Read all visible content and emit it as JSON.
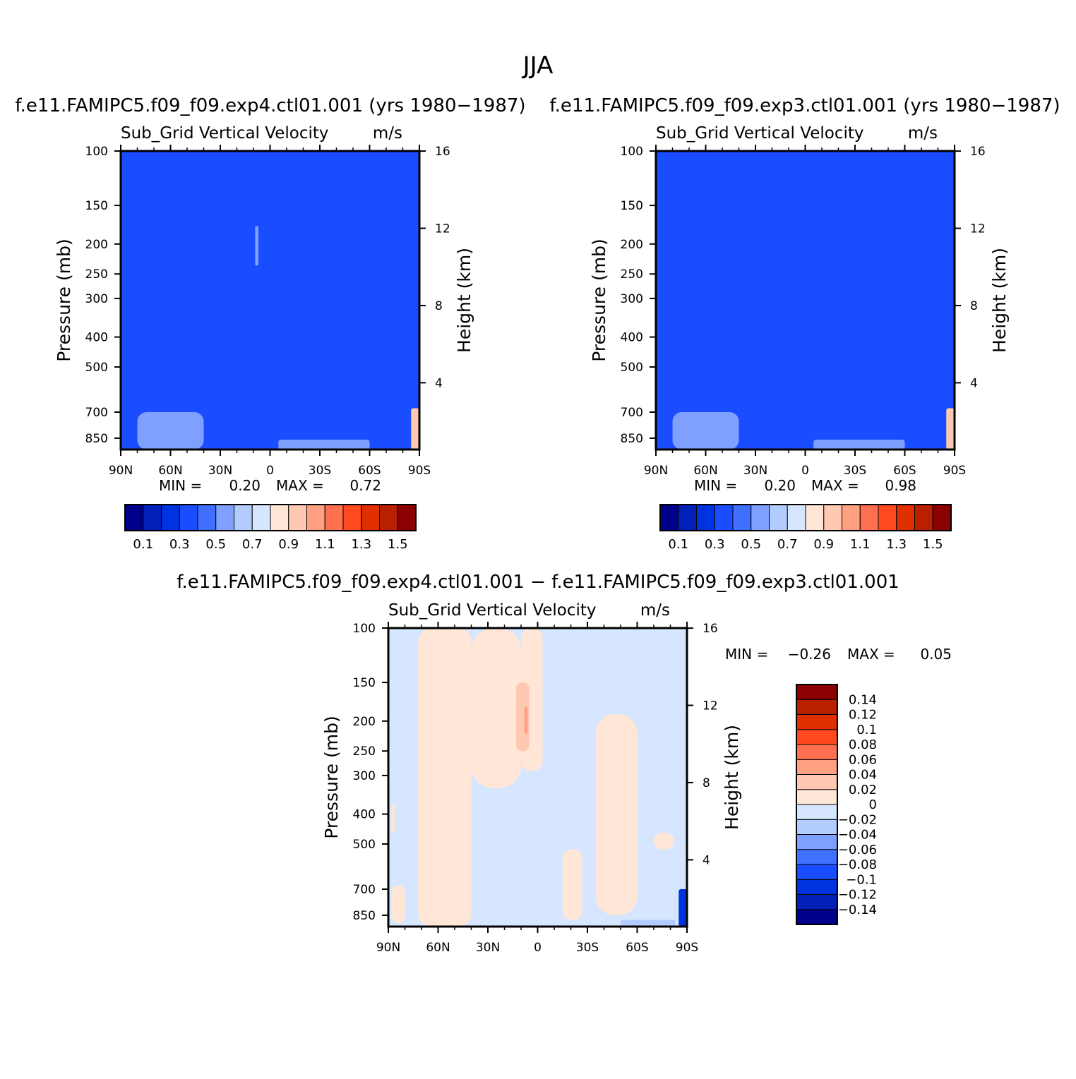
{
  "figure": {
    "title": "JJA"
  },
  "chart_data": [
    {
      "type": "heatmap",
      "title": "f.e11.FAMIPC5.f09_f09.exp4.ctl01.001 (yrs 1980−1987)",
      "subtitle_left": "Sub_Grid Vertical Velocity",
      "subtitle_right": "m/s",
      "ylabel": "Pressure (mb)",
      "ylabel_right": "Height (km)",
      "x_ticks": [
        "90N",
        "60N",
        "30N",
        "0",
        "30S",
        "60S",
        "90S"
      ],
      "y_ticks": [
        100,
        150,
        200,
        250,
        300,
        400,
        500,
        700,
        850
      ],
      "y_ticks_right": [
        16,
        12,
        8,
        4
      ],
      "ylim": [
        100,
        925
      ],
      "y_scale": "log",
      "min_label": "MIN =",
      "min_value": "0.20",
      "max_label": "MAX =",
      "max_value": "0.72",
      "field_level": 0.3,
      "features": [
        {
          "level": 0.5,
          "lat": [
            80,
            40
          ],
          "p": [
            700,
            925
          ]
        },
        {
          "level": 0.5,
          "lat": [
            -5,
            -60
          ],
          "p": [
            860,
            925
          ]
        },
        {
          "level": 0.5,
          "lat": [
            9,
            7
          ],
          "p": [
            175,
            235
          ]
        },
        {
          "level": 0.9,
          "lat": [
            -85,
            -90
          ],
          "p": [
            680,
            925
          ]
        }
      ],
      "colorbar": {
        "orientation": "horizontal",
        "colors": [
          "#00008b",
          "#0020b8",
          "#0033e0",
          "#1a4dff",
          "#4070ff",
          "#80a0ff",
          "#b3ccff",
          "#d6e6ff",
          "#ffe6d6",
          "#ffc8b0",
          "#ffa080",
          "#ff7050",
          "#ff4a20",
          "#e03000",
          "#b82000",
          "#8b0000"
        ],
        "labels": [
          "0.1",
          "0.3",
          "0.5",
          "0.7",
          "0.9",
          "1.1",
          "1.3",
          "1.5"
        ]
      }
    },
    {
      "type": "heatmap",
      "title": "f.e11.FAMIPC5.f09_f09.exp3.ctl01.001 (yrs 1980−1987)",
      "subtitle_left": "Sub_Grid Vertical Velocity",
      "subtitle_right": "m/s",
      "ylabel": "Pressure (mb)",
      "ylabel_right": "Height (km)",
      "x_ticks": [
        "90N",
        "60N",
        "30N",
        "0",
        "30S",
        "60S",
        "90S"
      ],
      "y_ticks": [
        100,
        150,
        200,
        250,
        300,
        400,
        500,
        700,
        850
      ],
      "y_ticks_right": [
        16,
        12,
        8,
        4
      ],
      "ylim": [
        100,
        925
      ],
      "y_scale": "log",
      "min_label": "MIN =",
      "min_value": "0.20",
      "max_label": "MAX =",
      "max_value": "0.98",
      "field_level": 0.3,
      "features": [
        {
          "level": 0.5,
          "lat": [
            80,
            40
          ],
          "p": [
            700,
            925
          ]
        },
        {
          "level": 0.5,
          "lat": [
            -5,
            -60
          ],
          "p": [
            860,
            925
          ]
        },
        {
          "level": 0.9,
          "lat": [
            -85,
            -90
          ],
          "p": [
            680,
            925
          ]
        }
      ],
      "colorbar": {
        "orientation": "horizontal",
        "colors": [
          "#00008b",
          "#0020b8",
          "#0033e0",
          "#1a4dff",
          "#4070ff",
          "#80a0ff",
          "#b3ccff",
          "#d6e6ff",
          "#ffe6d6",
          "#ffc8b0",
          "#ffa080",
          "#ff7050",
          "#ff4a20",
          "#e03000",
          "#b82000",
          "#8b0000"
        ],
        "labels": [
          "0.1",
          "0.3",
          "0.5",
          "0.7",
          "0.9",
          "1.1",
          "1.3",
          "1.5"
        ]
      }
    },
    {
      "type": "heatmap",
      "title": "f.e11.FAMIPC5.f09_f09.exp4.ctl01.001 − f.e11.FAMIPC5.f09_f09.exp3.ctl01.001",
      "subtitle_left": "Sub_Grid Vertical Velocity",
      "subtitle_right": "m/s",
      "ylabel": "Pressure (mb)",
      "ylabel_right": "Height (km)",
      "x_ticks": [
        "90N",
        "60N",
        "30N",
        "0",
        "30S",
        "60S",
        "90S"
      ],
      "y_ticks": [
        100,
        150,
        200,
        250,
        300,
        400,
        500,
        700,
        850
      ],
      "y_ticks_right": [
        16,
        12,
        8,
        4
      ],
      "ylim": [
        100,
        925
      ],
      "y_scale": "log",
      "min_label": "MIN =",
      "min_value": "−0.26",
      "max_label": "MAX =",
      "max_value": "0.05",
      "field_level": -0.01,
      "features": [
        {
          "level": 0.01,
          "lat": [
            72,
            40
          ],
          "p": [
            100,
            925
          ]
        },
        {
          "level": 0.01,
          "lat": [
            40,
            10
          ],
          "p": [
            100,
            330
          ]
        },
        {
          "level": 0.01,
          "lat": [
            10,
            -3
          ],
          "p": [
            100,
            290
          ]
        },
        {
          "level": 0.01,
          "lat": [
            -35,
            -60
          ],
          "p": [
            190,
            850
          ]
        },
        {
          "level": 0.01,
          "lat": [
            -15,
            -27
          ],
          "p": [
            520,
            880
          ]
        },
        {
          "level": 0.01,
          "lat": [
            88,
            80
          ],
          "p": [
            680,
            900
          ]
        },
        {
          "level": 0.01,
          "lat": [
            -70,
            -82
          ],
          "p": [
            460,
            520
          ]
        },
        {
          "level": 0.01,
          "lat": [
            88,
            86
          ],
          "p": [
            370,
            460
          ]
        },
        {
          "level": 0.03,
          "lat": [
            13,
            5
          ],
          "p": [
            150,
            250
          ]
        },
        {
          "level": 0.05,
          "lat": [
            8,
            6
          ],
          "p": [
            180,
            220
          ]
        },
        {
          "level": -0.03,
          "lat": [
            -50,
            -83
          ],
          "p": [
            880,
            925
          ]
        },
        {
          "level": -0.11,
          "lat": [
            -85,
            -90
          ],
          "p": [
            700,
            925
          ]
        }
      ],
      "colorbar": {
        "orientation": "vertical",
        "colors": [
          "#00008b",
          "#0020b8",
          "#0033e0",
          "#1a4dff",
          "#4070ff",
          "#80a0ff",
          "#b3ccff",
          "#d6e6ff",
          "#ffe6d6",
          "#ffc8b0",
          "#ffa080",
          "#ff7050",
          "#ff4a20",
          "#e03000",
          "#b82000",
          "#8b0000"
        ],
        "labels": [
          "−0.14",
          "−0.12",
          "−0.1",
          "−0.08",
          "−0.06",
          "−0.04",
          "−0.02",
          "0",
          "0.02",
          "0.04",
          "0.06",
          "0.08",
          "0.1",
          "0.12",
          "0.14"
        ]
      }
    }
  ]
}
